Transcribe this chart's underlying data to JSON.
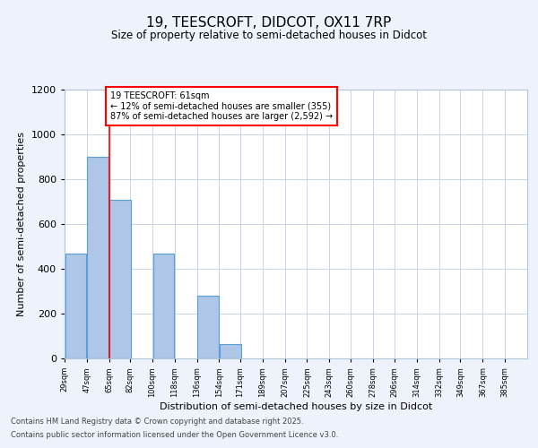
{
  "title": "19, TEESCROFT, DIDCOT, OX11 7RP",
  "subtitle": "Size of property relative to semi-detached houses in Didcot",
  "xlabel": "Distribution of semi-detached houses by size in Didcot",
  "ylabel": "Number of semi-detached properties",
  "bin_labels": [
    "29sqm",
    "47sqm",
    "65sqm",
    "82sqm",
    "100sqm",
    "118sqm",
    "136sqm",
    "154sqm",
    "171sqm",
    "189sqm",
    "207sqm",
    "225sqm",
    "243sqm",
    "260sqm",
    "278sqm",
    "296sqm",
    "314sqm",
    "332sqm",
    "349sqm",
    "367sqm",
    "385sqm"
  ],
  "bin_edges": [
    29,
    47,
    65,
    82,
    100,
    118,
    136,
    154,
    171,
    189,
    207,
    225,
    243,
    260,
    278,
    296,
    314,
    332,
    349,
    367,
    385
  ],
  "bar_heights": [
    470,
    900,
    710,
    0,
    470,
    0,
    280,
    65,
    0,
    0,
    0,
    0,
    0,
    0,
    0,
    0,
    0,
    0,
    0,
    0
  ],
  "bar_color": "#aec6e8",
  "bar_edge_color": "#5a9fd4",
  "property_line_x": 65,
  "annotation_text": "19 TEESCROFT: 61sqm\n← 12% of semi-detached houses are smaller (355)\n87% of semi-detached houses are larger (2,592) →",
  "ylim": [
    0,
    1200
  ],
  "yticks": [
    0,
    200,
    400,
    600,
    800,
    1000,
    1200
  ],
  "background_color": "#eef2fa",
  "axes_background": "#ffffff",
  "grid_color": "#c8d4e8",
  "footer_line1": "Contains HM Land Registry data © Crown copyright and database right 2025.",
  "footer_line2": "Contains public sector information licensed under the Open Government Licence v3.0."
}
